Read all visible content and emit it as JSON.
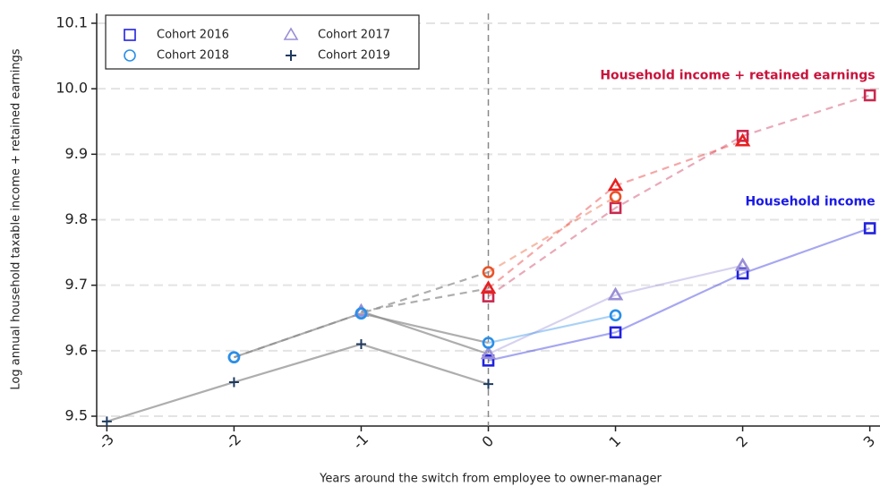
{
  "chart_data": {
    "type": "line",
    "x_label": "Years around the switch from employee to owner-manager",
    "y_label": "Log annual household taxable income + retained earnings",
    "xlim": [
      -3.08,
      3.08
    ],
    "xticks": [
      -3,
      -2,
      -1,
      0,
      1,
      2,
      3
    ],
    "ylim": [
      9.485,
      10.115
    ],
    "yticks": [
      9.5,
      9.6,
      9.7,
      9.8,
      9.9,
      {
        "value": 10,
        "label": "10.0"
      },
      10.1
    ],
    "grid": true,
    "vline": 0,
    "legend": "upper left",
    "pre_line_color": "#8c8c8c",
    "annotations": [
      {
        "text": "Household income + retained earnings",
        "x": 3,
        "y": 10.02,
        "color": "#c8143c"
      },
      {
        "text": "Household income",
        "x": 3,
        "y": 9.827,
        "color": "#1a1ae6"
      }
    ],
    "series": [
      {
        "name": "Cohort 2016",
        "marker": "square",
        "color": "#2222dd",
        "earnings_color": "#c8294f",
        "x": [
          0,
          1,
          2,
          3
        ],
        "values": [
          9.585,
          9.628,
          9.718,
          9.787
        ],
        "earnings_values": [
          9.683,
          9.818,
          9.928,
          9.99
        ]
      },
      {
        "name": "Cohort 2017",
        "marker": "triangle",
        "color": "#9a8fd6",
        "earnings_color": "#e82020",
        "x": [
          -1,
          0,
          1,
          2
        ],
        "values": [
          9.66,
          9.595,
          9.685,
          9.73
        ],
        "earnings_values": [
          9.66,
          9.695,
          9.852,
          9.92
        ]
      },
      {
        "name": "Cohort 2018",
        "marker": "circle",
        "color": "#2a8fe8",
        "earnings_color": "#e8552a",
        "x": [
          -2,
          -1,
          0,
          1
        ],
        "values": [
          9.59,
          9.657,
          9.612,
          9.654
        ],
        "earnings_values": [
          9.59,
          9.657,
          9.72,
          9.835
        ]
      },
      {
        "name": "Cohort 2019",
        "marker": "plus",
        "color": "#1f3a5f",
        "earnings_color": "#1f3a5f",
        "x": [
          -3,
          -2,
          -1,
          0
        ],
        "values": [
          9.492,
          9.552,
          9.61,
          9.549
        ],
        "earnings_values": [
          null,
          null,
          null,
          null
        ]
      }
    ]
  }
}
